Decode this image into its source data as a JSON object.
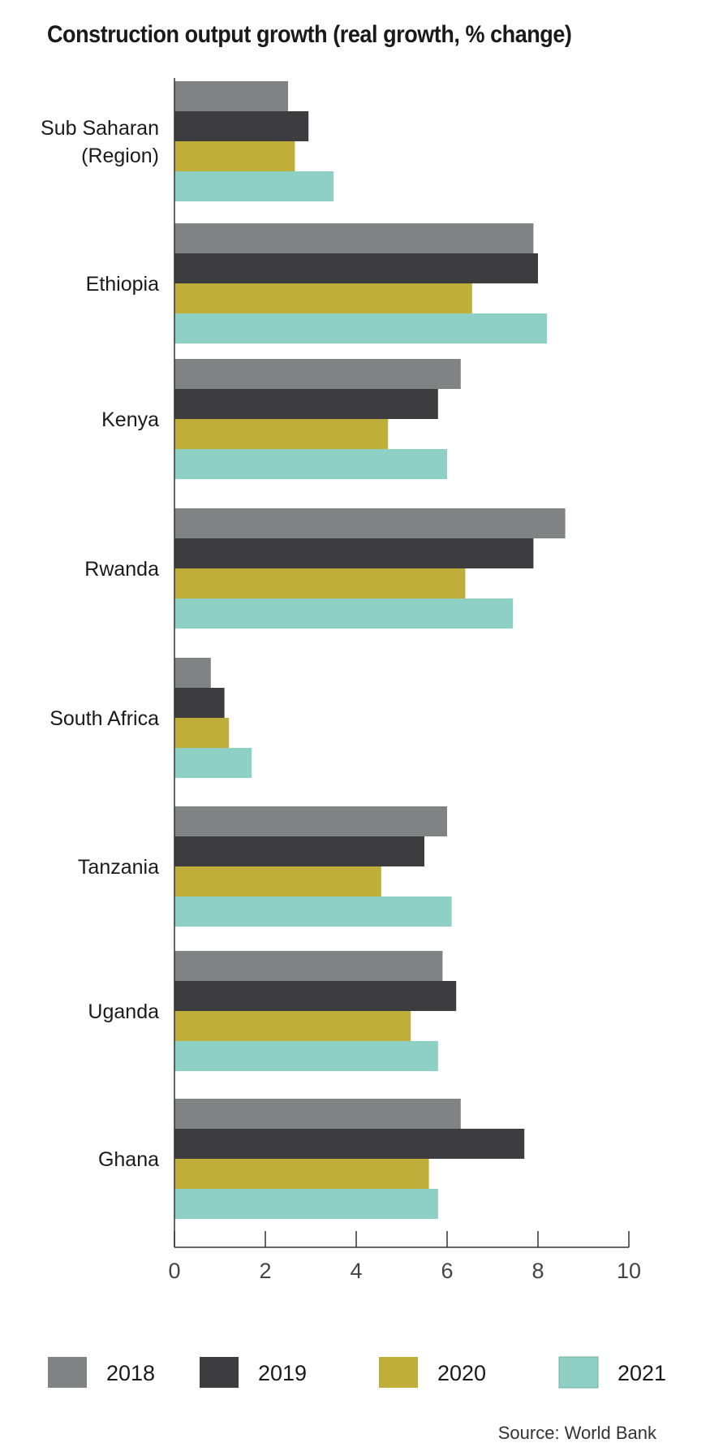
{
  "chart_data": {
    "type": "bar",
    "orientation": "horizontal",
    "title": "Construction output growth (real growth, % change)",
    "categories": [
      "Sub Saharan (Region)",
      "Ethiopia",
      "Kenya",
      "Rwanda",
      "South Africa",
      "Tanzania",
      "Uganda",
      "Ghana"
    ],
    "category_lines": [
      [
        "Sub Saharan",
        "(Region)"
      ],
      [
        "Ethiopia"
      ],
      [
        "Kenya"
      ],
      [
        "Rwanda"
      ],
      [
        "South Africa"
      ],
      [
        "Tanzania"
      ],
      [
        "Uganda"
      ],
      [
        "Ghana"
      ]
    ],
    "series": [
      {
        "name": "2018",
        "color": "#818284",
        "values": [
          2.5,
          7.9,
          6.3,
          8.6,
          0.8,
          6.0,
          5.9,
          6.3
        ]
      },
      {
        "name": "2019",
        "color": "#3d3d3f",
        "values": [
          2.95,
          8.0,
          5.8,
          7.9,
          1.1,
          5.5,
          6.2,
          7.7
        ]
      },
      {
        "name": "2020",
        "color": "#bfae39",
        "values": [
          2.65,
          6.55,
          4.7,
          6.4,
          1.2,
          4.55,
          5.2,
          5.6
        ]
      },
      {
        "name": "2021",
        "color": "#8fd0c4",
        "values": [
          3.5,
          8.2,
          6.0,
          7.45,
          1.7,
          6.1,
          5.8,
          5.8
        ]
      }
    ],
    "xlim": [
      0,
      10
    ],
    "xticks": [
      "0",
      "2",
      "4",
      "6",
      "8",
      "10"
    ],
    "xlabel": "",
    "ylabel": "",
    "grid": false,
    "legend_position": "bottom"
  },
  "source": "Source: World Bank"
}
